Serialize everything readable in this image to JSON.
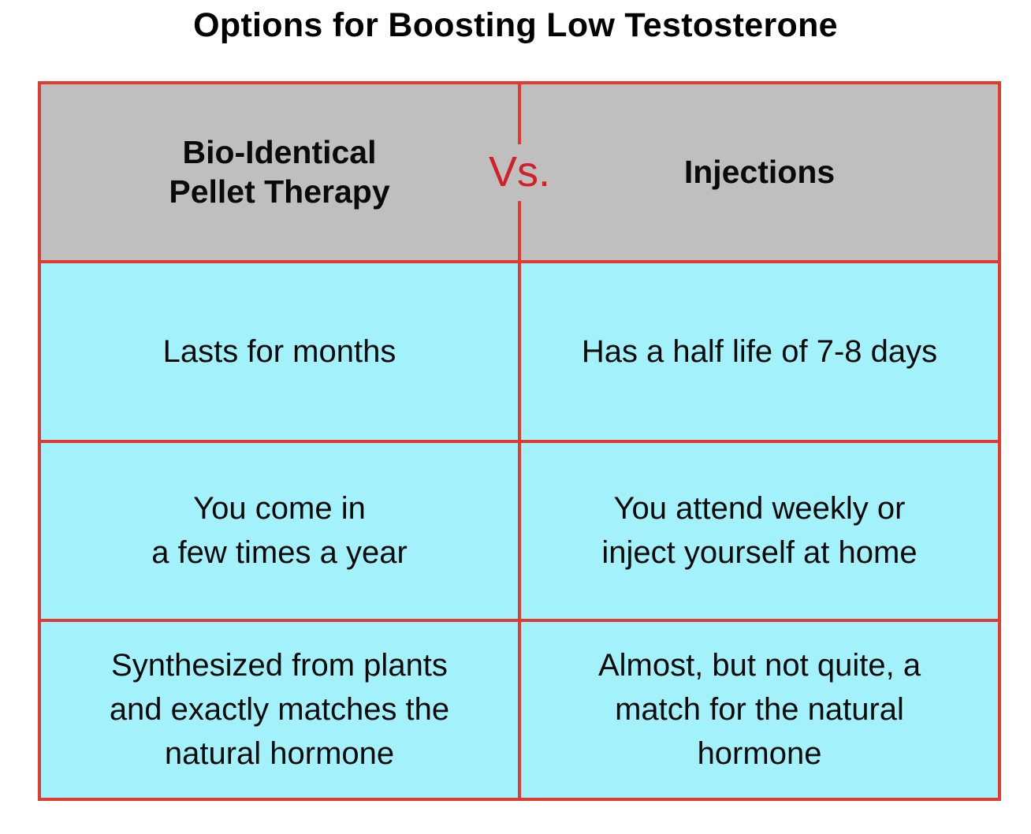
{
  "title": "Options for Boosting Low Testosterone",
  "table": {
    "vs_label": "Vs.",
    "columns": [
      {
        "header": "Bio-Identical\nPellet Therapy"
      },
      {
        "header": "Injections"
      }
    ],
    "rows": [
      {
        "left": "Lasts for months",
        "right": "Has a half life of 7-8 days"
      },
      {
        "left": "You come in\na few times a year",
        "right": "You attend weekly or\ninject yourself at home"
      },
      {
        "left": "Synthesized from plants\nand exactly matches the\nnatural hormone",
        "right": "Almost, but not quite, a\nmatch for the natural\nhormone"
      }
    ]
  },
  "colors": {
    "border-red": "#E03B30",
    "vs-red": "#D22027",
    "header-gray": "#BFBFBF",
    "cell-cyan": "#A3F2FB",
    "text-black": "#0A0A0A",
    "page-white": "#FFFFFF"
  }
}
